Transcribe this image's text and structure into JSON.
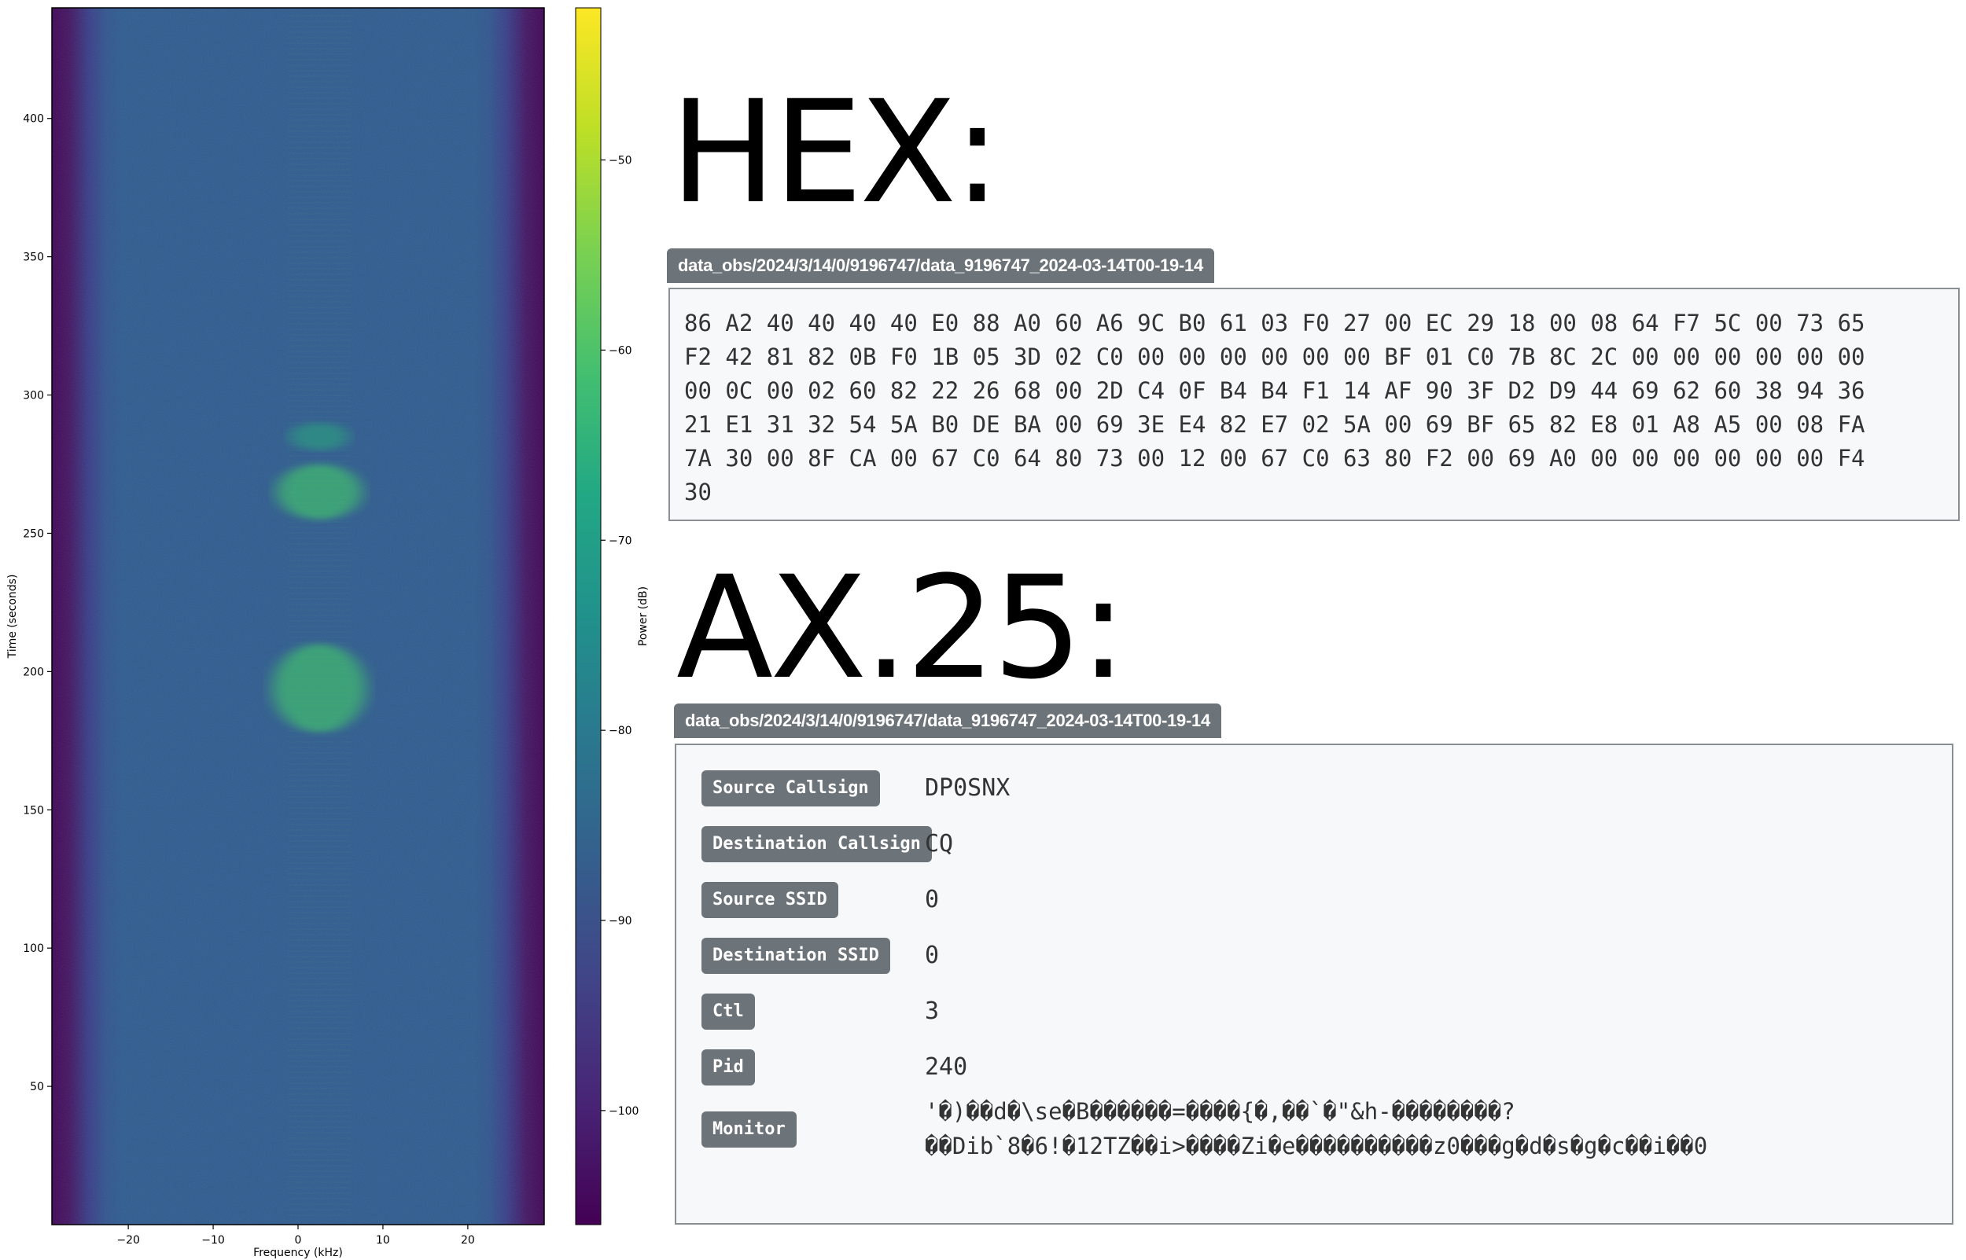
{
  "colors": {
    "badge": "#6c7379",
    "panel_bg": "#f6f8fa",
    "panel_border": "#8a8f94",
    "colormap": "viridis"
  },
  "chart_data": {
    "type": "heatmap",
    "title": "",
    "xlabel": "Frequency (kHz)",
    "ylabel": "Time (seconds)",
    "xlim": [
      -29,
      29
    ],
    "ylim": [
      0,
      440
    ],
    "xticks": [
      "−20",
      "−10",
      "0",
      "10",
      "20"
    ],
    "yticks": [
      "50",
      "100",
      "150",
      "200",
      "250",
      "300",
      "350",
      "400"
    ],
    "colorbar": {
      "label": "Power (dB)",
      "range": [
        -106,
        -42
      ],
      "ticks": [
        "−50",
        "−60",
        "−70",
        "−80",
        "−90",
        "−100"
      ]
    },
    "noise_floor_db": -82,
    "band_edges_khz": [
      -27,
      26
    ],
    "signal_center_khz": 2.5,
    "signal_bursts": [
      {
        "t_start": 255,
        "t_end": 275,
        "width_khz": 10,
        "power_db": -70
      },
      {
        "t_start": 178,
        "t_end": 210,
        "width_khz": 11,
        "power_db": -70
      },
      {
        "t_start": 280,
        "t_end": 290,
        "width_khz": 7,
        "power_db": -74
      }
    ]
  },
  "hex_section": {
    "heading": "HEX:",
    "path": "data_obs/2024/3/14/0/9196747/data_9196747_2024-03-14T00-19-14",
    "lines": [
      "86 A2 40 40 40 40 E0 88 A0 60 A6 9C B0 61 03 F0 27 00 EC 29 18 00 08 64 F7 5C 00 73 65",
      "F2 42 81 82 0B F0 1B 05 3D 02 C0 00 00 00 00 00 00 BF 01 C0 7B 8C 2C 00 00 00 00 00 00",
      "00 0C 00 02 60 82 22 26 68 00 2D C4 0F B4 B4 F1 14 AF 90 3F D2 D9 44 69 62 60 38 94 36",
      "21 E1 31 32 54 5A B0 DE BA 00 69 3E E4 82 E7 02 5A 00 69 BF 65 82 E8 01 A8 A5 00 08 FA",
      "7A 30 00 8F CA 00 67 C0 64 80 73 00 12 00 67 C0 63 80 F2 00 69 A0 00 00 00 00 00 00 F4",
      "30"
    ]
  },
  "ax25_section": {
    "heading": "AX.25:",
    "path": "data_obs/2024/3/14/0/9196747/data_9196747_2024-03-14T00-19-14",
    "fields": [
      {
        "label": "Source Callsign",
        "value": "DP0SNX"
      },
      {
        "label": "Destination Callsign",
        "value": "CQ"
      },
      {
        "label": "Source SSID",
        "value": "0"
      },
      {
        "label": "Destination SSID",
        "value": "0"
      },
      {
        "label": "Ctl",
        "value": "3"
      },
      {
        "label": "Pid",
        "value": "240"
      }
    ],
    "monitor": {
      "label": "Monitor",
      "line1": "'�)��d�\\se�B������=����{�,��`�\"&h-��������?",
      "line2": "��Dib`8�6!�12TZ��i>����Zi�e����������z0���g�d�s�g�c��i��0"
    }
  }
}
